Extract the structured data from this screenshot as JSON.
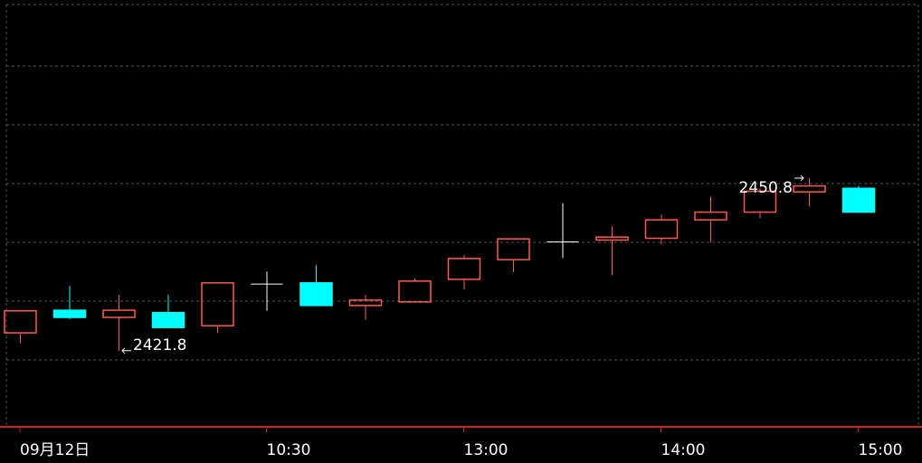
{
  "chart_data": {
    "type": "candlestick",
    "categories": [
      "09月12日",
      null,
      null,
      null,
      null,
      "10:30",
      null,
      null,
      null,
      "13:00",
      null,
      null,
      null,
      "14:00",
      null,
      null,
      null,
      "15:00"
    ],
    "open": [
      2424.8,
      2428.6,
      2427.4,
      2428.2,
      2426.0,
      2433.0,
      2433.2,
      2429.4,
      2430.0,
      2433.8,
      2437.1,
      2440.1,
      2440.4,
      2440.7,
      2443.8,
      2445.1,
      2448.5,
      2449.1
    ],
    "high": [
      2428.6,
      2432.7,
      2431.2,
      2431.2,
      2433.2,
      2435.1,
      2436.2,
      2431.2,
      2433.9,
      2437.9,
      2440.6,
      2446.6,
      2442.7,
      2444.7,
      2447.7,
      2449.1,
      2450.8,
      2449.5
    ],
    "low": [
      2423.0,
      2427.1,
      2421.8,
      2425.7,
      2424.8,
      2428.5,
      2429.4,
      2427.0,
      2430.0,
      2432.1,
      2435.0,
      2437.4,
      2434.5,
      2439.7,
      2440.0,
      2444.1,
      2446.0,
      2445.1
    ],
    "close": [
      2428.5,
      2427.4,
      2428.6,
      2425.7,
      2433.2,
      2433.0,
      2429.4,
      2430.3,
      2433.5,
      2437.3,
      2440.6,
      2440.1,
      2440.9,
      2443.8,
      2445.1,
      2448.6,
      2449.5,
      2445.1
    ],
    "ylim": [
      2409,
      2480
    ],
    "up_color": "#ff5a4e",
    "down_color": "#00ffff",
    "doji_color": "#ffffff",
    "axis_color": "#d42020"
  }
}
